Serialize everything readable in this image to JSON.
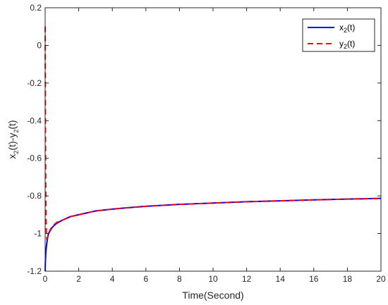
{
  "chart_data": {
    "type": "line",
    "title": "",
    "xlabel": "Time(Second)",
    "ylabel": {
      "main": "x",
      "sub1": "2",
      "mid": "(t)-y",
      "sub2": "2",
      "end": "(t)"
    },
    "xlim": [
      0,
      20
    ],
    "ylim": [
      -1.2,
      0.2
    ],
    "xticks": [
      0,
      2,
      4,
      6,
      8,
      10,
      12,
      14,
      16,
      18,
      20
    ],
    "yticks": [
      -1.2,
      -1,
      -0.8,
      -0.6,
      -0.4,
      -0.2,
      0,
      0.2
    ],
    "ytick_labels": [
      "-1.2",
      "-1",
      "-0.8",
      "-0.6",
      "-0.4",
      "-0.2",
      "0",
      "0.2"
    ],
    "grid": false,
    "legend_position": "top-right",
    "series": [
      {
        "name": {
          "main": "x",
          "sub": "2",
          "end": "(t)"
        },
        "color": "#0000ff",
        "dash": "solid",
        "x": [
          0,
          0.01,
          0.03,
          0.06,
          0.1,
          0.15,
          0.2,
          0.3,
          0.4,
          0.5,
          0.7,
          1,
          1.5,
          2,
          3,
          4,
          5,
          6,
          8,
          10,
          12,
          14,
          16,
          18,
          20
        ],
        "y": [
          -1.2,
          -1.16,
          -1.12,
          -1.08,
          -1.05,
          -1.02,
          -1.0,
          -0.985,
          -0.97,
          -0.96,
          -0.945,
          -0.93,
          -0.91,
          -0.9,
          -0.88,
          -0.87,
          -0.862,
          -0.855,
          -0.845,
          -0.838,
          -0.831,
          -0.826,
          -0.821,
          -0.817,
          -0.813
        ]
      },
      {
        "name": {
          "main": "y",
          "sub": "2",
          "end": "(t)"
        },
        "color": "#ff0000",
        "dash": "dashed",
        "x": [
          0,
          0.01,
          0.02,
          0.04,
          0.06,
          0.08,
          0.1,
          0.15,
          0.2,
          0.3,
          0.4,
          0.5,
          0.7,
          1,
          1.5,
          2,
          3,
          4,
          5,
          6,
          8,
          10,
          12,
          14,
          16,
          18,
          20
        ],
        "y": [
          0.1,
          -0.2,
          -0.5,
          -0.8,
          -0.95,
          -1.02,
          -1.03,
          -1.02,
          -1.0,
          -0.98,
          -0.965,
          -0.955,
          -0.94,
          -0.93,
          -0.91,
          -0.9,
          -0.88,
          -0.87,
          -0.862,
          -0.855,
          -0.845,
          -0.838,
          -0.831,
          -0.826,
          -0.821,
          -0.817,
          -0.813
        ]
      }
    ]
  }
}
